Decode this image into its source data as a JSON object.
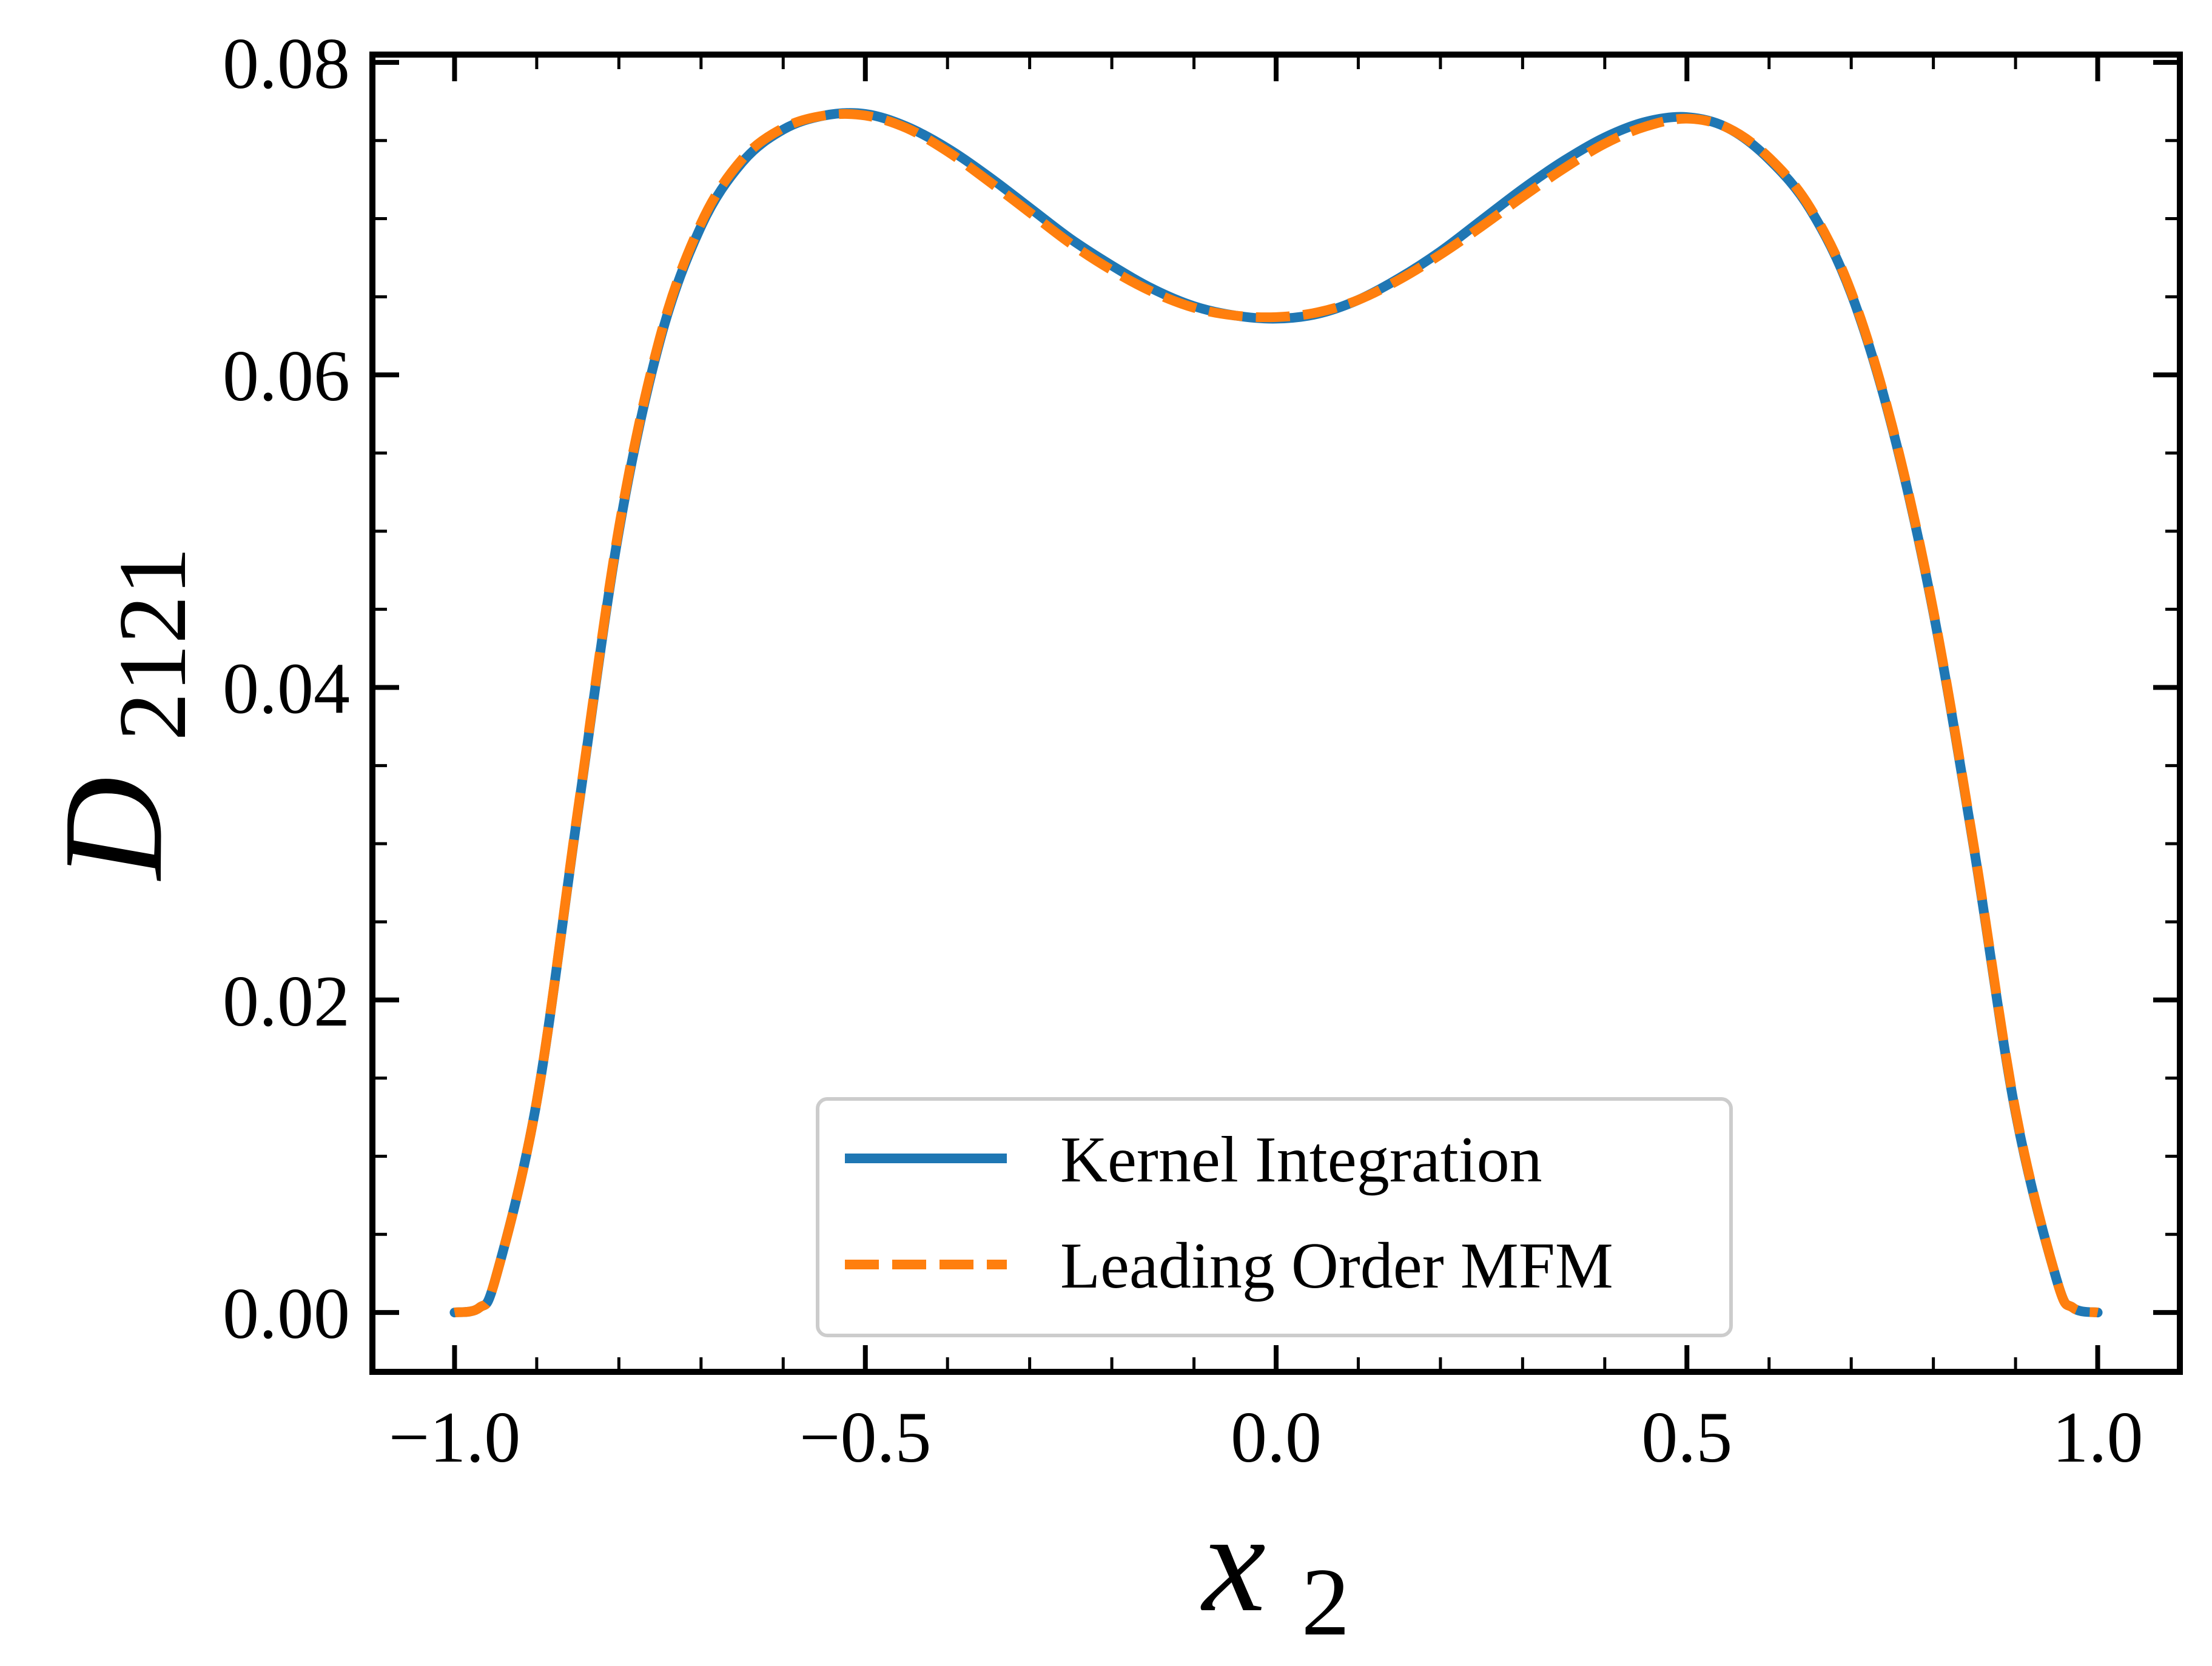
{
  "chart_data": {
    "type": "line",
    "title": "",
    "xlabel": {
      "base": "x",
      "subscript": "2"
    },
    "ylabel": {
      "base": "D",
      "subscript": "2121"
    },
    "xlim": [
      -1.1,
      1.1
    ],
    "ylim": [
      -0.0038,
      0.0805
    ],
    "x_ticks": [
      {
        "value": -1.0,
        "label": "−1.0"
      },
      {
        "value": -0.5,
        "label": "−0.5"
      },
      {
        "value": 0.0,
        "label": "0.0"
      },
      {
        "value": 0.5,
        "label": "0.5"
      },
      {
        "value": 1.0,
        "label": "1.0"
      }
    ],
    "y_ticks": [
      {
        "value": 0.0,
        "label": "0.00"
      },
      {
        "value": 0.02,
        "label": "0.02"
      },
      {
        "value": 0.04,
        "label": "0.04"
      },
      {
        "value": 0.06,
        "label": "0.06"
      },
      {
        "value": 0.08,
        "label": "0.08"
      }
    ],
    "x_minor_step": 0.1,
    "y_minor_step": 0.005,
    "grid": false,
    "legend_position": "lower-center",
    "series": [
      {
        "name": "Kernel Integration",
        "color": "#1f77b4",
        "style": "solid",
        "x": [
          -1.0,
          -0.97,
          -0.95,
          -0.9,
          -0.85,
          -0.8,
          -0.75,
          -0.7,
          -0.65,
          -0.6,
          -0.55,
          -0.5,
          -0.45,
          -0.4,
          -0.35,
          -0.3,
          -0.25,
          -0.2,
          -0.15,
          -0.1,
          -0.05,
          0.0,
          0.05,
          0.1,
          0.15,
          0.2,
          0.25,
          0.3,
          0.35,
          0.4,
          0.45,
          0.5,
          0.55,
          0.6,
          0.65,
          0.7,
          0.75,
          0.8,
          0.85,
          0.9,
          0.95,
          0.97,
          1.0
        ],
        "y": [
          0.0,
          0.0003,
          0.0022,
          0.0135,
          0.032,
          0.05,
          0.0622,
          0.0695,
          0.0736,
          0.0757,
          0.0766,
          0.0767,
          0.0759,
          0.0745,
          0.0727,
          0.0707,
          0.0687,
          0.067,
          0.0655,
          0.0644,
          0.0638,
          0.0636,
          0.0639,
          0.0648,
          0.0662,
          0.0679,
          0.0699,
          0.0719,
          0.0737,
          0.0752,
          0.0762,
          0.0765,
          0.0758,
          0.0738,
          0.0706,
          0.0652,
          0.0566,
          0.0448,
          0.0295,
          0.0128,
          0.0021,
          0.0003,
          0.0
        ]
      },
      {
        "name": "Leading Order MFM",
        "color": "#ff7f0e",
        "style": "dashed",
        "x": [
          -1.0,
          -0.97,
          -0.95,
          -0.9,
          -0.85,
          -0.8,
          -0.75,
          -0.7,
          -0.65,
          -0.6,
          -0.55,
          -0.5,
          -0.45,
          -0.4,
          -0.35,
          -0.3,
          -0.25,
          -0.2,
          -0.15,
          -0.1,
          -0.05,
          0.0,
          0.05,
          0.1,
          0.15,
          0.2,
          0.25,
          0.3,
          0.35,
          0.4,
          0.45,
          0.5,
          0.55,
          0.6,
          0.65,
          0.7,
          0.75,
          0.8,
          0.85,
          0.9,
          0.95,
          0.97,
          1.0
        ],
        "y": [
          0.0,
          0.0003,
          0.0022,
          0.0135,
          0.0321,
          0.0502,
          0.0624,
          0.0697,
          0.0738,
          0.0758,
          0.0766,
          0.0766,
          0.0758,
          0.0743,
          0.0724,
          0.0704,
          0.0684,
          0.0667,
          0.0653,
          0.0643,
          0.0638,
          0.0637,
          0.064,
          0.0648,
          0.0661,
          0.0677,
          0.0695,
          0.0714,
          0.0732,
          0.0748,
          0.0759,
          0.0764,
          0.0758,
          0.0739,
          0.0707,
          0.0653,
          0.0567,
          0.0449,
          0.0296,
          0.0129,
          0.0021,
          0.0003,
          0.0
        ]
      }
    ]
  }
}
